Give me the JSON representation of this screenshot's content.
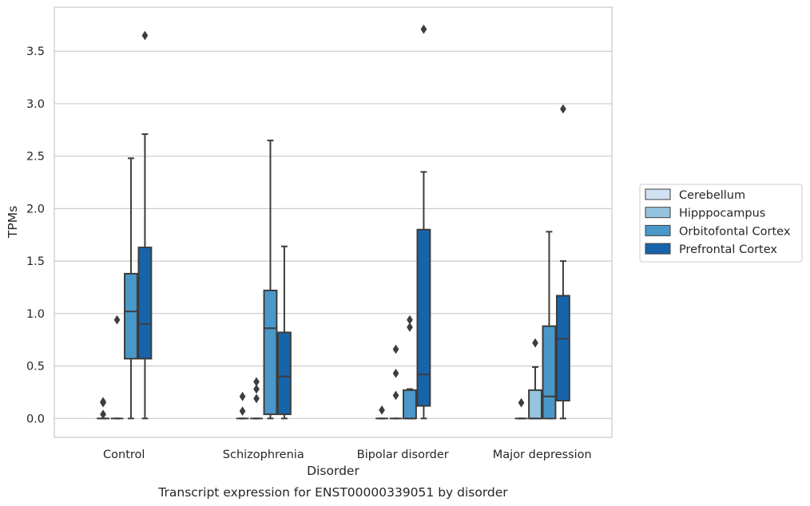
{
  "caption": "Transcript expression for ENST00000339051 by disorder",
  "chart_data": {
    "type": "box",
    "xlabel": "Disorder",
    "ylabel": "TPMs",
    "ylim": [
      -0.18,
      3.92
    ],
    "yticks": [
      0.0,
      0.5,
      1.0,
      1.5,
      2.0,
      2.5,
      3.0,
      3.5
    ],
    "ytick_labels": [
      "0.0",
      "0.5",
      "1.0",
      "1.5",
      "2.0",
      "2.5",
      "3.0",
      "3.5"
    ],
    "grid": "horizontal",
    "legend_position": "right",
    "categories": [
      "Control",
      "Schizophrenia",
      "Bipolar disorder",
      "Major depression"
    ],
    "series": [
      {
        "name": "Cerebellum",
        "color": "#d0e1f2",
        "boxes": [
          {
            "whislo": 0,
            "q1": 0,
            "med": 0,
            "q3": 0,
            "whishi": 0,
            "fliers": [
              0.15,
              0.16,
              0.04
            ]
          },
          {
            "whislo": 0,
            "q1": 0,
            "med": 0,
            "q3": 0,
            "whishi": 0,
            "fliers": [
              0.21,
              0.07
            ]
          },
          {
            "whislo": 0,
            "q1": 0,
            "med": 0,
            "q3": 0,
            "whishi": 0,
            "fliers": [
              0.08
            ]
          },
          {
            "whislo": 0,
            "q1": 0,
            "med": 0,
            "q3": 0,
            "whishi": 0,
            "fliers": [
              0.15
            ]
          }
        ]
      },
      {
        "name": "Hipppocampus",
        "color": "#94c4df",
        "boxes": [
          {
            "whislo": 0,
            "q1": 0,
            "med": 0,
            "q3": 0,
            "whishi": 0,
            "fliers": [
              0.94
            ]
          },
          {
            "whislo": 0,
            "q1": 0,
            "med": 0,
            "q3": 0,
            "whishi": 0,
            "fliers": [
              0.35,
              0.28,
              0.19
            ]
          },
          {
            "whislo": 0,
            "q1": 0,
            "med": 0,
            "q3": 0,
            "whishi": 0,
            "fliers": [
              0.66,
              0.43,
              0.22
            ]
          },
          {
            "whislo": 0,
            "q1": 0,
            "med": 0,
            "q3": 0.27,
            "whishi": 0.49,
            "fliers": [
              0.72
            ]
          }
        ]
      },
      {
        "name": "Orbitofontal Cortex",
        "color": "#4a98c9",
        "boxes": [
          {
            "whislo": 0,
            "q1": 0.57,
            "med": 1.02,
            "q3": 1.38,
            "whishi": 2.48,
            "fliers": []
          },
          {
            "whislo": 0,
            "q1": 0.04,
            "med": 0.86,
            "q3": 1.22,
            "whishi": 2.65,
            "fliers": []
          },
          {
            "whislo": 0,
            "q1": 0,
            "med": 0,
            "q3": 0.27,
            "whishi": 0.28,
            "fliers": [
              0.94,
              0.87
            ]
          },
          {
            "whislo": 0,
            "q1": 0,
            "med": 0.21,
            "q3": 0.88,
            "whishi": 1.78,
            "fliers": []
          }
        ]
      },
      {
        "name": "Prefrontal Cortex",
        "color": "#1764ab",
        "boxes": [
          {
            "whislo": 0,
            "q1": 0.57,
            "med": 0.9,
            "q3": 1.63,
            "whishi": 2.71,
            "fliers": [
              3.65
            ]
          },
          {
            "whislo": 0,
            "q1": 0.04,
            "med": 0.4,
            "q3": 0.82,
            "whishi": 1.64,
            "fliers": []
          },
          {
            "whislo": 0,
            "q1": 0.12,
            "med": 0.42,
            "q3": 1.8,
            "whishi": 2.35,
            "fliers": [
              3.71
            ]
          },
          {
            "whislo": 0,
            "q1": 0.17,
            "med": 0.76,
            "q3": 1.17,
            "whishi": 1.5,
            "fliers": [
              2.95
            ]
          }
        ]
      }
    ]
  }
}
